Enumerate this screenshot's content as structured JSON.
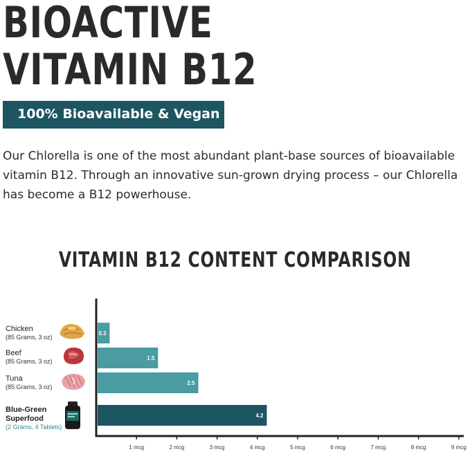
{
  "headline": {
    "line1": "BIOACTIVE",
    "line2": "VITAMIN B12"
  },
  "banner": {
    "text": "100% Bioavailable & Vegan"
  },
  "paragraph": "Our Chlorella is one of the most abundant plant-base sources of bioavailable vitamin B12. Through an innovative sun-grown drying process – our Chlorella has become a B12 powerhouse.",
  "colors": {
    "bar": "#4a9ca2",
    "bar_highlight": "#1d5561",
    "banner": "#1d5561",
    "axis": "#222222"
  },
  "icons": [
    "chicken-icon",
    "beef-icon",
    "tuna-icon",
    "supplement-bottle-icon"
  ],
  "chart_data": {
    "type": "bar",
    "orientation": "horizontal",
    "title": "VITAMIN B12 CONTENT COMPARISON",
    "categories": [
      {
        "name": "Chicken",
        "sub": "(85 Grams, 3 oz)"
      },
      {
        "name": "Beef",
        "sub": "(85 Grams, 3 oz)"
      },
      {
        "name": "Tuna",
        "sub": "(85 Grams, 3 oz)"
      },
      {
        "name": "Blue-Green Superfood",
        "sub": "(2 Grams, 4 Tablets)"
      }
    ],
    "values": [
      0.3,
      1.5,
      2.5,
      4.2
    ],
    "data_labels": [
      "0.3",
      "1.5",
      "2.5",
      "4.2"
    ],
    "highlight_index": 3,
    "xlim": [
      0,
      9
    ],
    "ticks": [
      1,
      2,
      3,
      4,
      5,
      6,
      7,
      8,
      9
    ],
    "tick_labels": [
      "1 mcg",
      "2 mcg",
      "3 mcg",
      "4 mcg",
      "5 mcg",
      "6 mcg",
      "7 mcg",
      "8 mcg",
      "9 mcg"
    ],
    "grid": false
  }
}
